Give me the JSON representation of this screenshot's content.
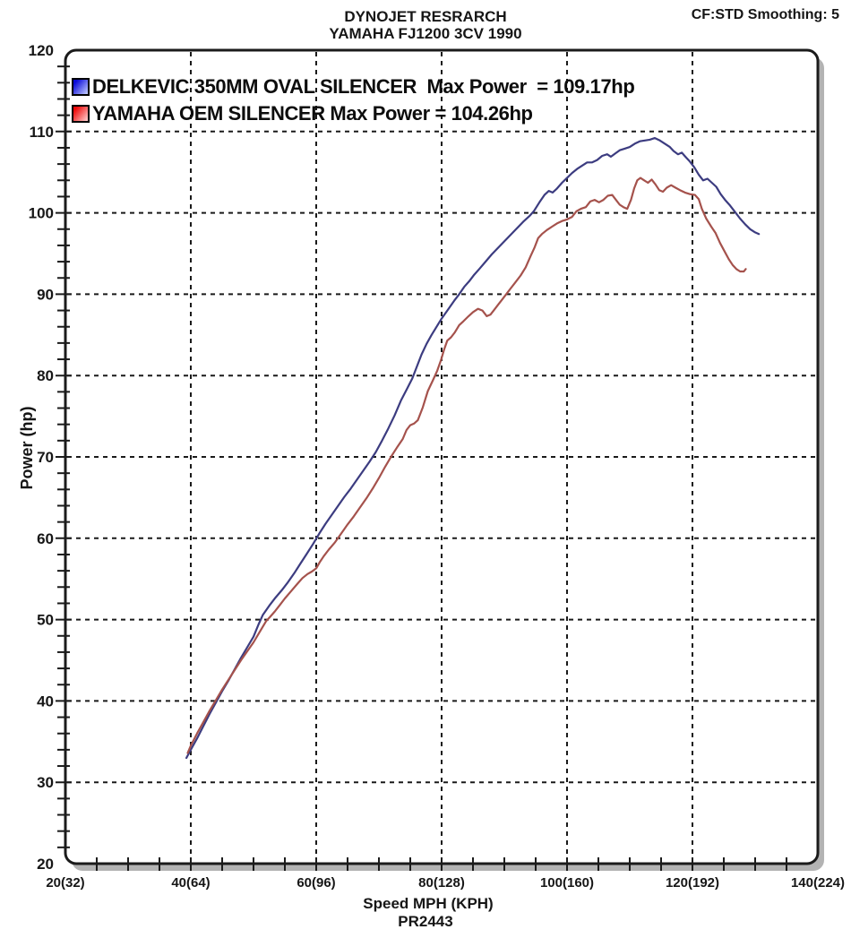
{
  "header": {
    "title_line1": "DYNOJET RESRARCH",
    "title_line2": "YAMAHA FJ1200 3CV 1990",
    "smoothing_label": "CF:STD Smoothing: 5"
  },
  "chart_data": {
    "type": "line",
    "title": "DYNOJET RESRARCH",
    "subtitle": "YAMAHA FJ1200 3CV 1990",
    "corner_note": "CF:STD Smoothing: 5",
    "xlabel": "Speed MPH (KPH)",
    "ylabel": "Power (hp)",
    "footer_label": "PR2443",
    "xlim": [
      20,
      140
    ],
    "ylim": [
      20,
      120
    ],
    "grid": "dashed major gridlines only",
    "legend_position": "top-left inside plot",
    "x_major_step": 20,
    "x_minor_step": 5,
    "y_major_step": 10,
    "y_minor_step": 2,
    "x_ticks": [
      {
        "value": 20,
        "label": "20(32)"
      },
      {
        "value": 40,
        "label": "40(64)"
      },
      {
        "value": 60,
        "label": "60(96)"
      },
      {
        "value": 80,
        "label": "80(128)"
      },
      {
        "value": 100,
        "label": "100(160)"
      },
      {
        "value": 120,
        "label": "120(192)"
      },
      {
        "value": 140,
        "label": "140(224)"
      }
    ],
    "y_ticks": [
      20,
      30,
      40,
      50,
      60,
      70,
      80,
      90,
      100,
      110,
      120
    ],
    "series": [
      {
        "name": "DELKEVIC 350MM OVAL SILENCER",
        "legend_label": "DELKEVIC 350MM OVAL SILENCER  Max Power  = 109.17hp",
        "max_power_hp": 109.17,
        "line_color": "#3c3c80",
        "swatch_gradient": [
          "#0a0ad8",
          "#bcc6ff"
        ],
        "points": [
          [
            39.3,
            33.0
          ],
          [
            40,
            34.0
          ],
          [
            41,
            35.4
          ],
          [
            42,
            36.9
          ],
          [
            43,
            38.4
          ],
          [
            44,
            39.8
          ],
          [
            45,
            41.2
          ],
          [
            46,
            42.5
          ],
          [
            47,
            43.9
          ],
          [
            48,
            45.3
          ],
          [
            49,
            46.6
          ],
          [
            50,
            47.9
          ],
          [
            50.8,
            49.4
          ],
          [
            51.5,
            50.6
          ],
          [
            52.5,
            51.7
          ],
          [
            53.5,
            52.7
          ],
          [
            54.5,
            53.6
          ],
          [
            55.5,
            54.6
          ],
          [
            56.5,
            55.7
          ],
          [
            57.5,
            56.9
          ],
          [
            58.5,
            58.1
          ],
          [
            59.5,
            59.3
          ],
          [
            60.5,
            60.6
          ],
          [
            61.5,
            61.8
          ],
          [
            62.5,
            62.9
          ],
          [
            63.5,
            64.0
          ],
          [
            64.5,
            65.1
          ],
          [
            65.5,
            66.1
          ],
          [
            66.5,
            67.2
          ],
          [
            67.5,
            68.3
          ],
          [
            68.5,
            69.4
          ],
          [
            69.5,
            70.6
          ],
          [
            70.5,
            72.0
          ],
          [
            71.5,
            73.5
          ],
          [
            72.5,
            75.1
          ],
          [
            73.5,
            76.9
          ],
          [
            74.5,
            78.4
          ],
          [
            75.3,
            79.6
          ],
          [
            76,
            81.0
          ],
          [
            76.8,
            82.6
          ],
          [
            77.6,
            83.9
          ],
          [
            78.4,
            85.0
          ],
          [
            79.2,
            86.0
          ],
          [
            80,
            87.0
          ],
          [
            81,
            88.1
          ],
          [
            82,
            89.2
          ],
          [
            82.8,
            90.0
          ],
          [
            83.6,
            90.9
          ],
          [
            84.4,
            91.6
          ],
          [
            85.2,
            92.4
          ],
          [
            86,
            93.1
          ],
          [
            87,
            94.0
          ],
          [
            88,
            94.9
          ],
          [
            89,
            95.7
          ],
          [
            90,
            96.5
          ],
          [
            91,
            97.3
          ],
          [
            92,
            98.1
          ],
          [
            93,
            98.9
          ],
          [
            94,
            99.6
          ],
          [
            94.7,
            100.2
          ],
          [
            95.6,
            101.3
          ],
          [
            96.4,
            102.2
          ],
          [
            97.1,
            102.7
          ],
          [
            97.7,
            102.5
          ],
          [
            98.4,
            103.0
          ],
          [
            99.2,
            103.7
          ],
          [
            100,
            104.3
          ],
          [
            100.8,
            104.9
          ],
          [
            101.6,
            105.4
          ],
          [
            102.4,
            105.8
          ],
          [
            103.2,
            106.2
          ],
          [
            104,
            106.2
          ],
          [
            104.8,
            106.5
          ],
          [
            105.6,
            107.0
          ],
          [
            106.4,
            107.2
          ],
          [
            107,
            106.9
          ],
          [
            107.7,
            107.3
          ],
          [
            108.4,
            107.7
          ],
          [
            109.2,
            107.9
          ],
          [
            110,
            108.1
          ],
          [
            110.8,
            108.5
          ],
          [
            111.6,
            108.8
          ],
          [
            112.4,
            108.9
          ],
          [
            113.2,
            109.0
          ],
          [
            114,
            109.2
          ],
          [
            114.8,
            108.9
          ],
          [
            115.6,
            108.5
          ],
          [
            116.4,
            108.1
          ],
          [
            117,
            107.6
          ],
          [
            117.7,
            107.2
          ],
          [
            118.3,
            107.4
          ],
          [
            119,
            106.8
          ],
          [
            119.6,
            106.3
          ],
          [
            120.3,
            105.6
          ],
          [
            121,
            104.7
          ],
          [
            121.7,
            104.0
          ],
          [
            122.4,
            104.2
          ],
          [
            123.1,
            103.7
          ],
          [
            123.8,
            103.2
          ],
          [
            124.5,
            102.3
          ],
          [
            125.2,
            101.6
          ],
          [
            126,
            100.9
          ],
          [
            126.8,
            100.1
          ],
          [
            127.6,
            99.3
          ],
          [
            128.4,
            98.6
          ],
          [
            129.2,
            98.0
          ],
          [
            130,
            97.6
          ],
          [
            130.6,
            97.4
          ]
        ]
      },
      {
        "name": "YAMAHA OEM SILENCER",
        "legend_label": "YAMAHA OEM SILENCER Max Power = 104.26hp",
        "max_power_hp": 104.26,
        "line_color": "#a5524c",
        "swatch_gradient": [
          "#ee0a0a",
          "#ffc9c9"
        ],
        "points": [
          [
            39.5,
            33.6
          ],
          [
            40,
            34.5
          ],
          [
            41,
            36.0
          ],
          [
            42,
            37.4
          ],
          [
            43,
            38.8
          ],
          [
            44,
            40.1
          ],
          [
            45,
            41.4
          ],
          [
            46,
            42.6
          ],
          [
            47,
            43.8
          ],
          [
            48,
            45.0
          ],
          [
            49,
            46.1
          ],
          [
            50,
            47.2
          ],
          [
            51,
            48.5
          ],
          [
            52,
            49.8
          ],
          [
            52.6,
            50.3
          ],
          [
            53.4,
            51.0
          ],
          [
            54.2,
            51.8
          ],
          [
            55,
            52.6
          ],
          [
            56,
            53.5
          ],
          [
            57,
            54.4
          ],
          [
            57.8,
            55.1
          ],
          [
            58.6,
            55.6
          ],
          [
            59.3,
            55.9
          ],
          [
            60,
            56.3
          ],
          [
            60.6,
            57.1
          ],
          [
            61.2,
            57.8
          ],
          [
            62,
            58.6
          ],
          [
            63,
            59.5
          ],
          [
            64,
            60.6
          ],
          [
            65,
            61.7
          ],
          [
            66,
            62.7
          ],
          [
            67,
            63.8
          ],
          [
            68,
            64.9
          ],
          [
            69,
            66.1
          ],
          [
            70,
            67.4
          ],
          [
            71,
            68.8
          ],
          [
            72,
            70.1
          ],
          [
            73,
            71.3
          ],
          [
            73.8,
            72.2
          ],
          [
            74.4,
            73.3
          ],
          [
            75,
            73.9
          ],
          [
            75.6,
            74.1
          ],
          [
            76.2,
            74.5
          ],
          [
            77,
            76.1
          ],
          [
            77.8,
            78.1
          ],
          [
            78.6,
            79.4
          ],
          [
            79.3,
            80.6
          ],
          [
            79.9,
            81.9
          ],
          [
            80.4,
            83.2
          ],
          [
            80.9,
            84.3
          ],
          [
            81.5,
            84.7
          ],
          [
            82.1,
            85.3
          ],
          [
            82.8,
            86.2
          ],
          [
            83.5,
            86.7
          ],
          [
            84.3,
            87.3
          ],
          [
            85,
            87.8
          ],
          [
            85.8,
            88.2
          ],
          [
            86.5,
            88.0
          ],
          [
            87.2,
            87.3
          ],
          [
            87.8,
            87.5
          ],
          [
            88.4,
            88.1
          ],
          [
            89,
            88.7
          ],
          [
            89.6,
            89.3
          ],
          [
            90.3,
            90.0
          ],
          [
            91,
            90.7
          ],
          [
            91.8,
            91.5
          ],
          [
            92.6,
            92.3
          ],
          [
            93.4,
            93.3
          ],
          [
            94.2,
            94.7
          ],
          [
            94.8,
            95.7
          ],
          [
            95.4,
            96.9
          ],
          [
            96,
            97.4
          ],
          [
            96.8,
            97.9
          ],
          [
            97.6,
            98.3
          ],
          [
            98.4,
            98.7
          ],
          [
            99.2,
            99.0
          ],
          [
            100,
            99.2
          ],
          [
            100.8,
            99.5
          ],
          [
            101.5,
            100.2
          ],
          [
            102.2,
            100.5
          ],
          [
            103,
            100.7
          ],
          [
            103.7,
            101.4
          ],
          [
            104.4,
            101.6
          ],
          [
            105.1,
            101.3
          ],
          [
            105.8,
            101.6
          ],
          [
            106.5,
            102.1
          ],
          [
            107.2,
            102.2
          ],
          [
            107.8,
            101.6
          ],
          [
            108.4,
            101.0
          ],
          [
            109,
            100.7
          ],
          [
            109.6,
            100.5
          ],
          [
            110.2,
            101.6
          ],
          [
            110.7,
            103.0
          ],
          [
            111.2,
            104.0
          ],
          [
            111.7,
            104.3
          ],
          [
            112.3,
            104.0
          ],
          [
            112.9,
            103.7
          ],
          [
            113.5,
            104.1
          ],
          [
            114.1,
            103.5
          ],
          [
            114.7,
            102.8
          ],
          [
            115.3,
            102.6
          ],
          [
            115.9,
            103.1
          ],
          [
            116.6,
            103.4
          ],
          [
            117.3,
            103.1
          ],
          [
            118,
            102.8
          ],
          [
            118.8,
            102.5
          ],
          [
            119.6,
            102.3
          ],
          [
            120.4,
            102.2
          ],
          [
            121,
            101.7
          ],
          [
            121.5,
            100.5
          ],
          [
            122.2,
            99.3
          ],
          [
            123,
            98.3
          ],
          [
            123.7,
            97.5
          ],
          [
            124.4,
            96.3
          ],
          [
            125.1,
            95.3
          ],
          [
            125.8,
            94.3
          ],
          [
            126.4,
            93.6
          ],
          [
            127,
            93.1
          ],
          [
            127.6,
            92.8
          ],
          [
            128.2,
            92.8
          ],
          [
            128.5,
            93.1
          ]
        ]
      }
    ],
    "style": {
      "border_color": "#1b1b1b",
      "shadow_color": "#b3b3b3",
      "grid_color": "#1a1a1a",
      "background": "#ffffff"
    }
  }
}
